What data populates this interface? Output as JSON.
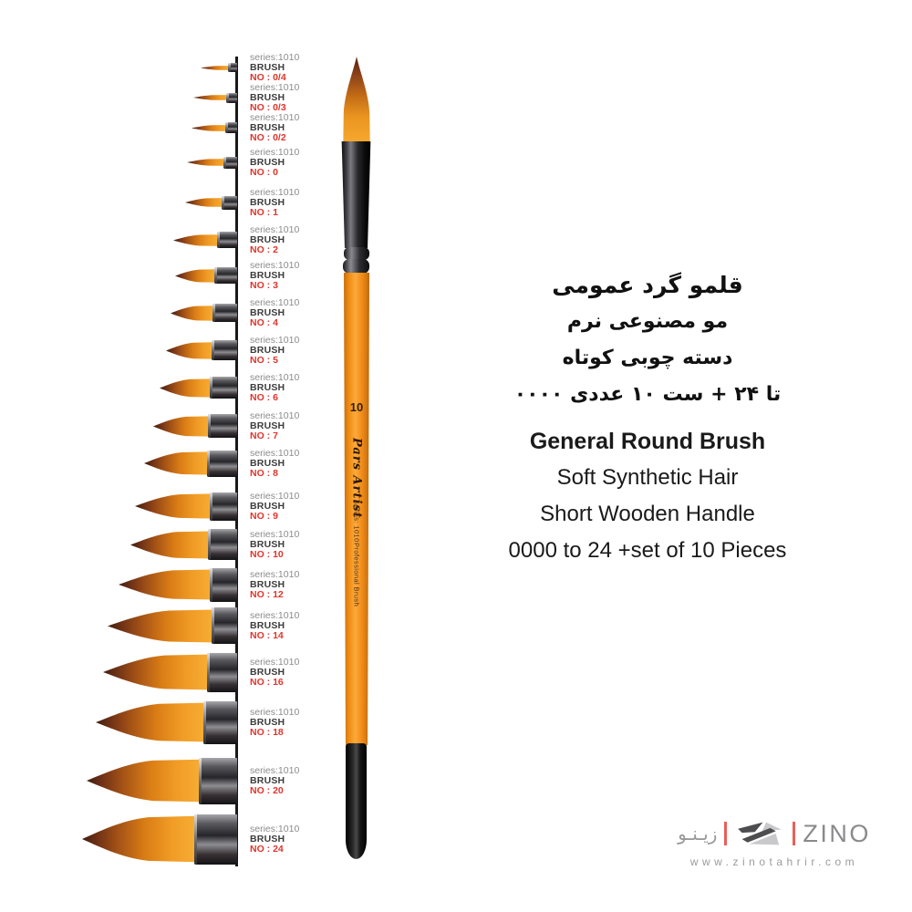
{
  "brush_column": {
    "items": [
      {
        "series": "series:1010",
        "label": "BRUSH",
        "no": "NO : 0/4"
      },
      {
        "series": "series:1010",
        "label": "BRUSH",
        "no": "NO : 0/3"
      },
      {
        "series": "series:1010",
        "label": "BRUSH",
        "no": "NO : 0/2"
      },
      {
        "series": "series:1010",
        "label": "BRUSH",
        "no": "NO : 0"
      },
      {
        "series": "series:1010",
        "label": "BRUSH",
        "no": "NO : 1"
      },
      {
        "series": "series:1010",
        "label": "BRUSH",
        "no": "NO : 2"
      },
      {
        "series": "series:1010",
        "label": "BRUSH",
        "no": "NO : 3"
      },
      {
        "series": "series:1010",
        "label": "BRUSH",
        "no": "NO : 4"
      },
      {
        "series": "series:1010",
        "label": "BRUSH",
        "no": "NO : 5"
      },
      {
        "series": "series:1010",
        "label": "BRUSH",
        "no": "NO : 6"
      },
      {
        "series": "series:1010",
        "label": "BRUSH",
        "no": "NO : 7"
      },
      {
        "series": "series:1010",
        "label": "BRUSH",
        "no": "NO : 8"
      },
      {
        "series": "series:1010",
        "label": "BRUSH",
        "no": "NO : 9"
      },
      {
        "series": "series:1010",
        "label": "BRUSH",
        "no": "NO : 10"
      },
      {
        "series": "series:1010",
        "label": "BRUSH",
        "no": "NO : 12"
      },
      {
        "series": "series:1010",
        "label": "BRUSH",
        "no": "NO : 14"
      },
      {
        "series": "series:1010",
        "label": "BRUSH",
        "no": "NO : 16"
      },
      {
        "series": "series:1010",
        "label": "BRUSH",
        "no": "NO : 18"
      },
      {
        "series": "series:1010",
        "label": "BRUSH",
        "no": "NO : 20"
      },
      {
        "series": "series:1010",
        "label": "BRUSH",
        "no": "NO : 24"
      }
    ]
  },
  "main_brush": {
    "size_number": "10",
    "brand": "Pars Artist",
    "series_label": "series: 1010",
    "profession_label": "Professional Brush"
  },
  "info": {
    "fa": {
      "title": "قلمو گرد عمومی",
      "line2": "مو مصنوعی نرم",
      "line3": "دسته چوبی کوتاه",
      "line4": "۰۰۰۰ تا ۲۴ + ست ۱۰ عددی"
    },
    "en": {
      "title": "General Round Brush",
      "line2": "Soft Synthetic Hair",
      "line3": "Short Wooden Handle",
      "line4": "0000 to 24 +set of 10 Pieces"
    }
  },
  "logo": {
    "wordmark_fa": "زیـنـو",
    "wordmark_en": "ZINO",
    "url": "www.zinotahrir.com"
  },
  "colors": {
    "accent_red": "#e0342b",
    "label_gray": "#8c8c8c",
    "label_dark": "#3c3c3c",
    "handle_orange": "#f6921e",
    "logo_red": "#e86058",
    "logo_dark_gray": "#4d4d4f",
    "logo_light_gray": "#c9c9cb"
  }
}
